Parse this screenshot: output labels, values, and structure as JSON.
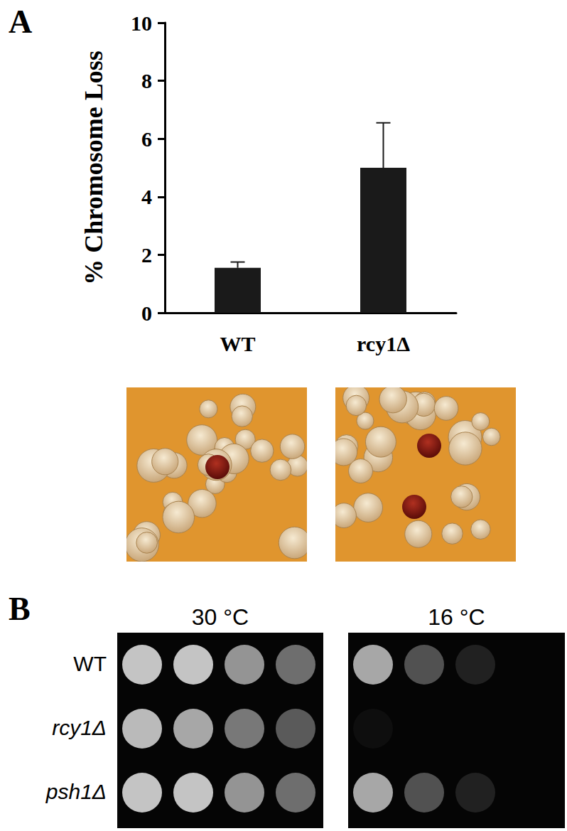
{
  "panel_labels": [
    "A",
    "B"
  ],
  "chart_data": {
    "type": "bar",
    "y_label": "% Chromosome Loss",
    "categories": [
      "WT",
      "rcy1Δ"
    ],
    "values": [
      1.55,
      5.0
    ],
    "errors": [
      0.2,
      1.55
    ],
    "color": "#1a1a1a",
    "ylim": [
      0,
      10
    ],
    "yticks": [
      0,
      2,
      4,
      6,
      8,
      10
    ],
    "grid": false
  },
  "colony_images": {
    "strains": [
      "WT",
      "rcy1Δ"
    ],
    "red_colonies": [
      1,
      2
    ]
  },
  "spot_assay": {
    "temperatures": [
      "30 °C",
      "16 °C"
    ],
    "strains": [
      "WT",
      "rcy1Δ",
      "psh1Δ"
    ],
    "italic": [
      false,
      true,
      true
    ],
    "growth": [
      [
        [
          1.0,
          1.0,
          0.75,
          0.55
        ],
        [
          0.95,
          0.85,
          0.6,
          0.45
        ],
        [
          1.0,
          1.0,
          0.75,
          0.55
        ]
      ],
      [
        [
          0.85,
          0.4,
          0.15,
          0.0
        ],
        [
          0.05,
          0.0,
          0.0,
          0.0
        ],
        [
          0.85,
          0.4,
          0.15,
          0.0
        ]
      ]
    ]
  }
}
